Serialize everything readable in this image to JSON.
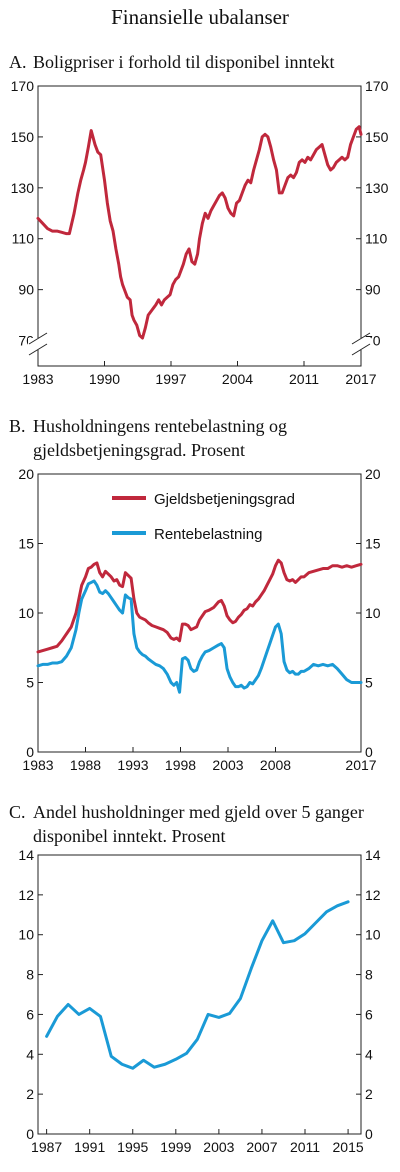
{
  "figure_title": "Finansielle ubalanser",
  "colors": {
    "red": "#c0283c",
    "blue": "#1a9ad6",
    "axis": "#222222"
  },
  "chart_data": [
    {
      "type": "line",
      "label": "A.",
      "title_lines": [
        "Boligpriser i forhold til disponibel inntekt"
      ],
      "ylim": [
        60,
        170
      ],
      "yticks": [
        70,
        90,
        110,
        130,
        150,
        170
      ],
      "axis_break": true,
      "xlim": [
        1983,
        2017
      ],
      "xticks": [
        "1983",
        "1990",
        "1997",
        "2004",
        "2011",
        "2017"
      ],
      "series": [
        {
          "color": "red",
          "x": [
            1983,
            1983.5,
            1984,
            1984.5,
            1985,
            1985.5,
            1986,
            1986.3,
            1986.8,
            1987.2,
            1987.5,
            1987.8,
            1988,
            1988.3,
            1988.6,
            1989,
            1989.3,
            1989.6,
            1990,
            1990.3,
            1990.6,
            1990.9,
            1991.2,
            1991.5,
            1991.7,
            1991.9,
            1992.1,
            1992.4,
            1992.7,
            1992.9,
            1993.1,
            1993.4,
            1993.7,
            1994,
            1994.3,
            1994.6,
            1995,
            1995.2,
            1995.4,
            1995.7,
            1996,
            1996.3,
            1996.6,
            1996.9,
            1997.2,
            1997.5,
            1997.8,
            1998,
            1998.3,
            1998.6,
            1998.9,
            1999.2,
            1999.5,
            1999.8,
            2000,
            2000.3,
            2000.6,
            2000.9,
            2001.2,
            2001.5,
            2001.8,
            2002.1,
            2002.4,
            2002.7,
            2003,
            2003.3,
            2003.6,
            2003.9,
            2004.2,
            2004.5,
            2004.8,
            2005.1,
            2005.4,
            2005.7,
            2006,
            2006.3,
            2006.6,
            2006.9,
            2007.2,
            2007.5,
            2007.8,
            2008.1,
            2008.4,
            2008.7,
            2009,
            2009.3,
            2009.6,
            2009.9,
            2010.2,
            2010.5,
            2010.8,
            2011.1,
            2011.4,
            2011.7,
            2012,
            2012.3,
            2012.6,
            2012.9,
            2013.2,
            2013.5,
            2013.8,
            2014.1,
            2014.4,
            2014.7,
            2015,
            2015.3,
            2015.6,
            2015.9,
            2016.2,
            2016.5,
            2016.8,
            2017
          ],
          "y": [
            118,
            116,
            114,
            113,
            113,
            112.5,
            112,
            112,
            120,
            128,
            133,
            137,
            140,
            146,
            152.5,
            147,
            144,
            143,
            133,
            124,
            117,
            113,
            106,
            100,
            95,
            92,
            90,
            87,
            86,
            80,
            78,
            76,
            72,
            71,
            75,
            80,
            82,
            83,
            84,
            86,
            84,
            86,
            87,
            88,
            92,
            94,
            95,
            97,
            100,
            104,
            106,
            101,
            100,
            104,
            110,
            116,
            120,
            118,
            121,
            123,
            125,
            127,
            128,
            126,
            122,
            120,
            119,
            124,
            125,
            128,
            131,
            133,
            132,
            137,
            141,
            145,
            150,
            151,
            150,
            146,
            141,
            137,
            128,
            128,
            131,
            134,
            135,
            134,
            136,
            140,
            141,
            140,
            142,
            141,
            143,
            145,
            146,
            147,
            143,
            139,
            137,
            138,
            140,
            141,
            142,
            141,
            142,
            147,
            150,
            153,
            154,
            151
          ]
        }
      ]
    },
    {
      "type": "line",
      "label": "B.",
      "title_lines": [
        "Husholdningens rentebelastning og",
        "gjeldsbetjeningsgrad. Prosent"
      ],
      "ylim": [
        0,
        20
      ],
      "yticks": [
        0,
        5,
        10,
        15,
        20
      ],
      "xlim": [
        1983,
        2017
      ],
      "xticks": [
        "1983",
        "1988",
        "1993",
        "1998",
        "2003",
        "2008",
        "2017"
      ],
      "series": [
        {
          "name": "Gjeldsbetjeningsgrad",
          "color": "red",
          "x": [
            1983,
            1983.5,
            1984,
            1984.5,
            1985,
            1985.5,
            1986,
            1986.5,
            1987,
            1987.3,
            1987.6,
            1988,
            1988.3,
            1988.6,
            1988.9,
            1989.2,
            1989.5,
            1989.8,
            1990.1,
            1990.4,
            1990.7,
            1991,
            1991.3,
            1991.6,
            1991.9,
            1992.2,
            1992.5,
            1992.8,
            1993.1,
            1993.4,
            1993.7,
            1994,
            1994.3,
            1994.6,
            1995,
            1995.4,
            1995.8,
            1996.2,
            1996.6,
            1997,
            1997.3,
            1997.6,
            1997.9,
            1998.2,
            1998.5,
            1998.8,
            1999.1,
            1999.4,
            1999.7,
            2000,
            2000.3,
            2000.6,
            2001,
            2001.5,
            2002,
            2002.3,
            2002.6,
            2002.9,
            2003.2,
            2003.5,
            2003.8,
            2004.1,
            2004.4,
            2004.7,
            2005,
            2005.3,
            2005.6,
            2005.9,
            2006.2,
            2006.5,
            2006.8,
            2007.1,
            2007.4,
            2007.7,
            2008,
            2008.3,
            2008.6,
            2008.9,
            2009.2,
            2009.5,
            2009.8,
            2010.1,
            2010.4,
            2010.7,
            2011,
            2011.5,
            2012,
            2012.5,
            2013,
            2013.5,
            2014,
            2014.5,
            2015,
            2015.5,
            2016,
            2016.5,
            2017
          ],
          "y": [
            7.2,
            7.3,
            7.4,
            7.5,
            7.6,
            8.0,
            8.5,
            9.0,
            10.0,
            11.0,
            12.0,
            12.6,
            13.2,
            13.3,
            13.5,
            13.6,
            12.9,
            12.6,
            13.0,
            12.8,
            12.6,
            12.3,
            12.4,
            12.0,
            11.9,
            12.9,
            12.7,
            12.5,
            11.0,
            10.0,
            9.7,
            9.6,
            9.5,
            9.3,
            9.1,
            9.0,
            8.9,
            8.8,
            8.6,
            8.2,
            8.1,
            8.2,
            8.0,
            9.2,
            9.2,
            9.1,
            8.8,
            8.9,
            9.0,
            9.5,
            9.8,
            10.1,
            10.2,
            10.4,
            10.8,
            10.9,
            10.5,
            9.8,
            9.5,
            9.3,
            9.4,
            9.7,
            9.9,
            10.2,
            10.3,
            10.6,
            10.5,
            10.8,
            11.0,
            11.3,
            11.6,
            12.0,
            12.4,
            12.8,
            13.4,
            13.8,
            13.6,
            12.9,
            12.4,
            12.3,
            12.4,
            12.2,
            12.4,
            12.6,
            12.6,
            12.9,
            13.0,
            13.1,
            13.2,
            13.2,
            13.4,
            13.4,
            13.3,
            13.4,
            13.3,
            13.4,
            13.5
          ]
        },
        {
          "name": "Rentebelastning",
          "color": "blue",
          "x": [
            1983,
            1983.5,
            1984,
            1984.5,
            1985,
            1985.5,
            1986,
            1986.5,
            1987,
            1987.3,
            1987.6,
            1988,
            1988.3,
            1988.6,
            1988.9,
            1989.2,
            1989.5,
            1989.8,
            1990.1,
            1990.4,
            1990.7,
            1991,
            1991.3,
            1991.6,
            1991.9,
            1992.2,
            1992.5,
            1992.8,
            1993.1,
            1993.4,
            1993.7,
            1994,
            1994.3,
            1994.6,
            1995,
            1995.4,
            1995.8,
            1996.2,
            1996.6,
            1997,
            1997.3,
            1997.6,
            1997.9,
            1998.2,
            1998.5,
            1998.8,
            1999.1,
            1999.4,
            1999.7,
            2000,
            2000.3,
            2000.6,
            2001,
            2001.5,
            2002,
            2002.3,
            2002.6,
            2002.9,
            2003.2,
            2003.5,
            2003.8,
            2004.1,
            2004.4,
            2004.7,
            2005,
            2005.3,
            2005.6,
            2005.9,
            2006.2,
            2006.5,
            2006.8,
            2007.1,
            2007.4,
            2007.7,
            2008,
            2008.3,
            2008.6,
            2008.9,
            2009.2,
            2009.5,
            2009.8,
            2010.1,
            2010.4,
            2010.7,
            2011,
            2011.5,
            2012,
            2012.5,
            2013,
            2013.5,
            2014,
            2014.5,
            2015,
            2015.5,
            2016,
            2016.5,
            2017
          ],
          "y": [
            6.2,
            6.3,
            6.3,
            6.4,
            6.4,
            6.5,
            6.9,
            7.5,
            8.8,
            10.0,
            11.0,
            11.6,
            12.1,
            12.2,
            12.3,
            12.0,
            11.5,
            11.4,
            11.6,
            11.4,
            11.1,
            10.8,
            10.5,
            10.2,
            10.0,
            11.3,
            11.1,
            11.0,
            8.5,
            7.5,
            7.2,
            7.0,
            6.9,
            6.7,
            6.5,
            6.3,
            6.2,
            6.0,
            5.6,
            5.0,
            4.8,
            5.0,
            4.3,
            6.7,
            6.8,
            6.6,
            6.0,
            5.8,
            5.9,
            6.5,
            6.9,
            7.2,
            7.3,
            7.5,
            7.7,
            7.8,
            7.5,
            6.0,
            5.4,
            5.0,
            4.7,
            4.7,
            4.8,
            4.6,
            4.7,
            5.0,
            4.9,
            5.2,
            5.5,
            6.0,
            6.6,
            7.2,
            7.8,
            8.4,
            9.0,
            9.2,
            8.5,
            6.5,
            5.9,
            5.7,
            5.8,
            5.6,
            5.6,
            5.8,
            5.8,
            6.0,
            6.3,
            6.2,
            6.3,
            6.2,
            6.3,
            6.0,
            5.6,
            5.2,
            5.0,
            5.0,
            5.0
          ]
        }
      ]
    },
    {
      "type": "line",
      "label": "C.",
      "title_lines": [
        "Andel husholdninger med gjeld over 5 ganger",
        "disponibel inntekt. Prosent"
      ],
      "ylim": [
        0,
        14
      ],
      "yticks": [
        0,
        2,
        4,
        6,
        8,
        10,
        12,
        14
      ],
      "xlim": [
        1986.2,
        2016.2
      ],
      "xticks": [
        "1987",
        "1991",
        "1995",
        "1999",
        "2003",
        "2007",
        "2011",
        "2015"
      ],
      "series": [
        {
          "color": "blue",
          "x": [
            1987,
            1988,
            1989,
            1990,
            1991,
            1992,
            1993,
            1994,
            1995,
            1996,
            1997,
            1998,
            1999,
            2000,
            2001,
            2002,
            2003,
            2004,
            2005,
            2006,
            2007,
            2008,
            2009,
            2010,
            2011,
            2012,
            2013,
            2014,
            2015
          ],
          "y": [
            4.9,
            5.9,
            6.5,
            6.0,
            6.3,
            5.9,
            3.9,
            3.5,
            3.3,
            3.7,
            3.35,
            3.5,
            3.75,
            4.05,
            4.75,
            6.0,
            5.85,
            6.05,
            6.8,
            8.3,
            9.7,
            10.7,
            9.6,
            9.7,
            10.05,
            10.6,
            11.15,
            11.45,
            11.65
          ]
        }
      ]
    }
  ]
}
